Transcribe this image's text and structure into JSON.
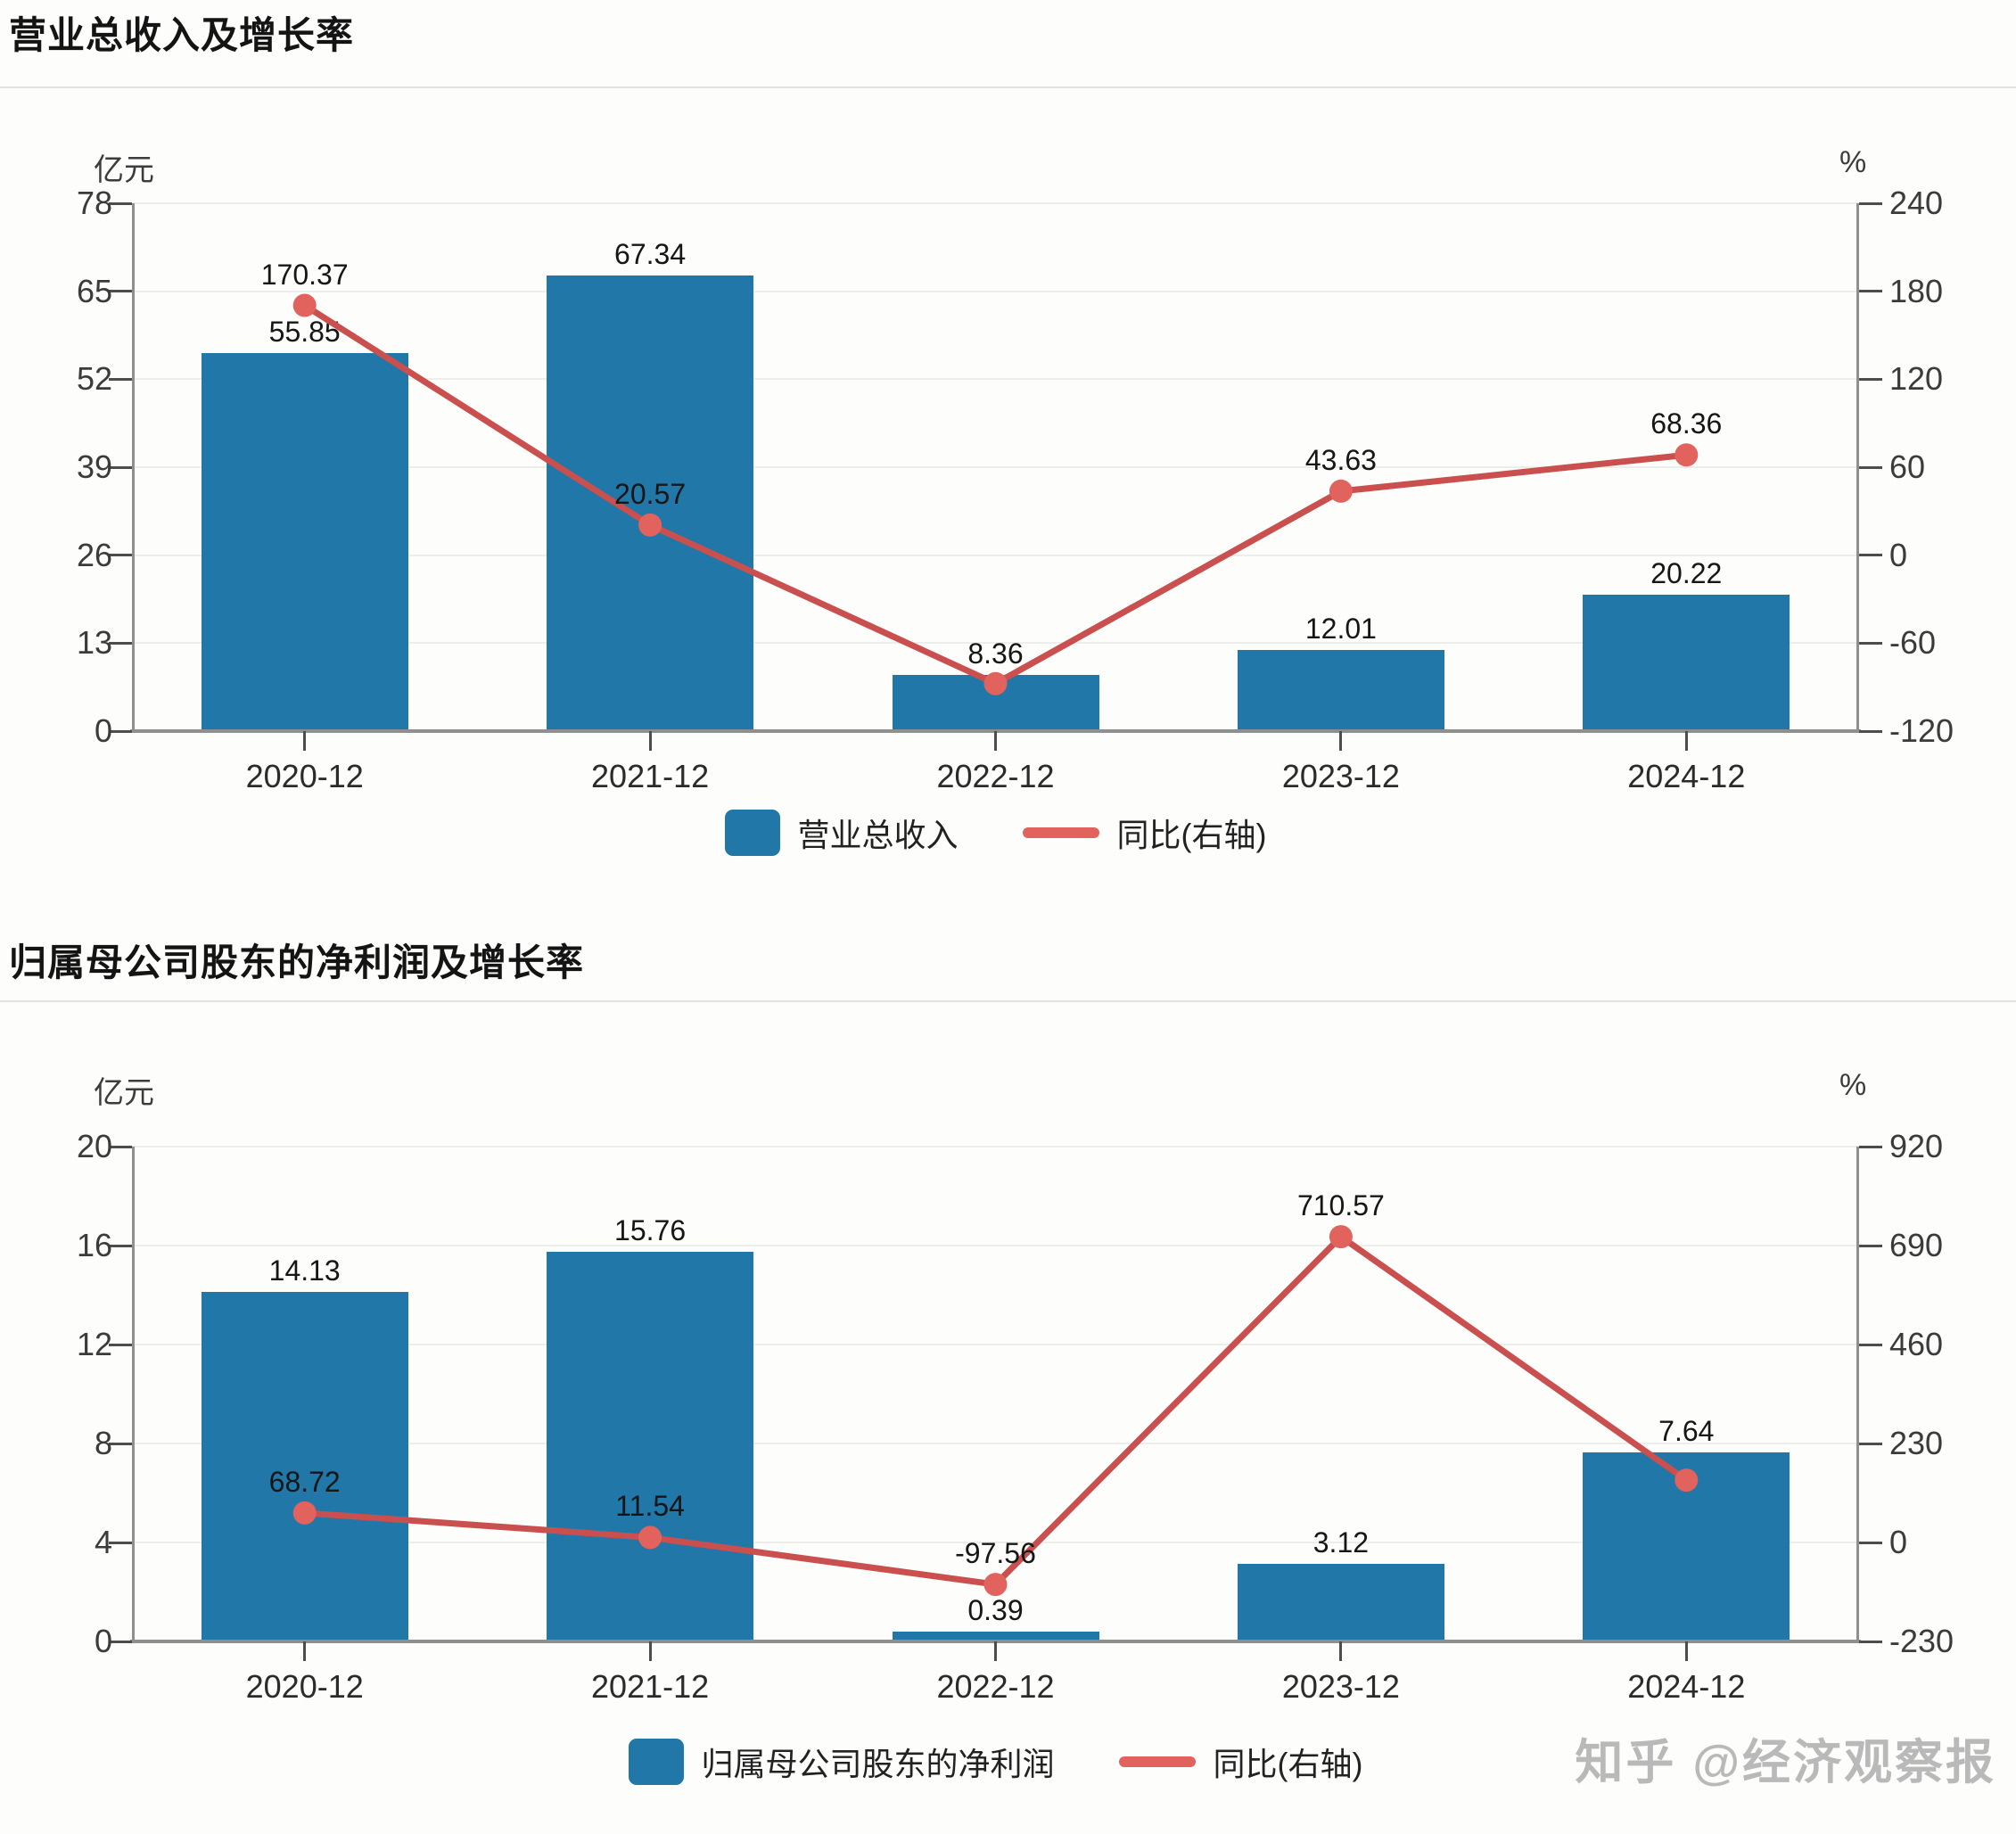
{
  "page": {
    "background_color": "#fdfdfb",
    "watermark": "知乎 @经济观察报"
  },
  "chart_data": [
    {
      "type": "bar+line",
      "title": "营业总收入及增长率",
      "grid": true,
      "legend_position": "bottom",
      "categories": [
        "2020-12",
        "2021-12",
        "2022-12",
        "2023-12",
        "2024-12"
      ],
      "left_axis": {
        "unit": "亿元",
        "min": 0,
        "max": 78,
        "ticks": [
          78,
          65,
          52,
          39,
          26,
          13,
          0
        ]
      },
      "right_axis": {
        "unit": "%",
        "min": -120,
        "max": 240,
        "ticks": [
          240,
          180,
          120,
          60,
          0,
          -60,
          -120
        ]
      },
      "bar_series": {
        "name": "营业总收入",
        "axis": "left",
        "color": "#2077a8",
        "values": [
          55.85,
          67.34,
          8.36,
          12.01,
          20.22
        ],
        "labels": [
          "55.85",
          "67.34",
          "8.36",
          "12.01",
          "20.22"
        ]
      },
      "line_series": {
        "name": "同比(右轴)",
        "axis": "right",
        "color": "#c9504e",
        "dot_color": "#e2635d",
        "values": [
          170.37,
          20.57,
          -87.59,
          43.63,
          68.36
        ],
        "labels": [
          "170.37",
          "20.57",
          "",
          "43.63",
          "68.36"
        ]
      }
    },
    {
      "type": "bar+line",
      "title": "归属母公司股东的净利润及增长率",
      "grid": true,
      "legend_position": "bottom",
      "categories": [
        "2020-12",
        "2021-12",
        "2022-12",
        "2023-12",
        "2024-12"
      ],
      "left_axis": {
        "unit": "亿元",
        "min": 0,
        "max": 20,
        "ticks": [
          20,
          16,
          12,
          8,
          4,
          0
        ]
      },
      "right_axis": {
        "unit": "%",
        "min": -230,
        "max": 920,
        "ticks": [
          920,
          690,
          460,
          230,
          0,
          -230
        ]
      },
      "bar_series": {
        "name": "归属母公司股东的净利润",
        "axis": "left",
        "color": "#2077a8",
        "values": [
          14.13,
          15.76,
          0.39,
          3.12,
          7.64
        ],
        "labels": [
          "14.13",
          "15.76",
          "0.39",
          "3.12",
          "7.64"
        ]
      },
      "line_series": {
        "name": "同比(右轴)",
        "axis": "right",
        "color": "#c9504e",
        "dot_color": "#e2635d",
        "values": [
          68.72,
          11.54,
          -97.56,
          710.57,
          144.87
        ],
        "labels": [
          "68.72",
          "11.54",
          "-97.56",
          "710.57",
          ""
        ]
      }
    }
  ]
}
